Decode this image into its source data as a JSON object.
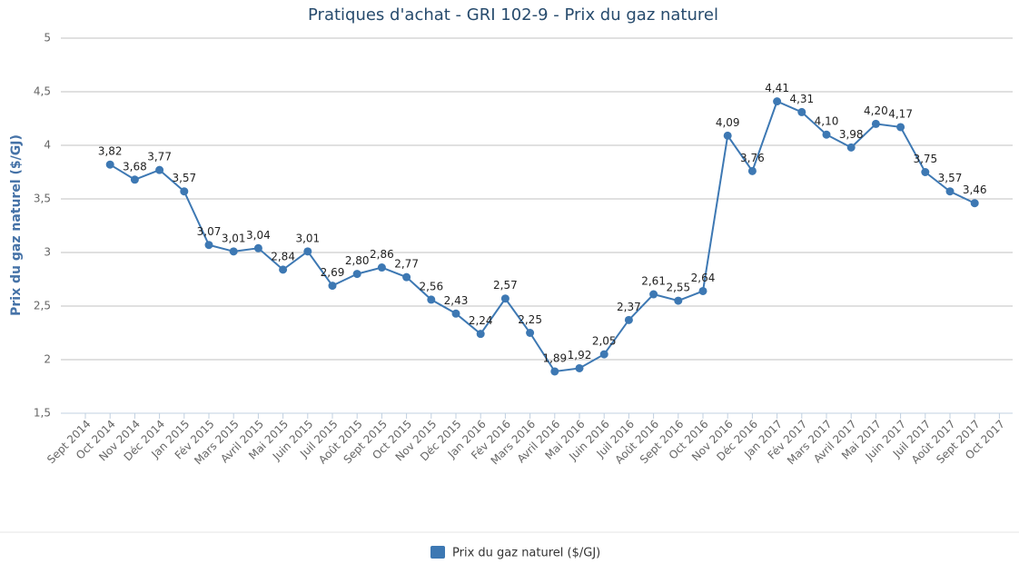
{
  "chart_data": {
    "type": "line",
    "title": "Pratiques d'achat - GRI 102-9 - Prix du gaz naturel",
    "y_label": "Prix du gaz naturel ($/GJ)",
    "categories": [
      "Sept 2014",
      "Oct 2014",
      "Nov 2014",
      "Déc 2014",
      "Jan 2015",
      "Fév 2015",
      "Mars 2015",
      "Avril 2015",
      "Mai 2015",
      "Juin 2015",
      "Juil 2015",
      "Août 2015",
      "Sept 2015",
      "Oct 2015",
      "Nov 2015",
      "Déc 2015",
      "Jan 2016",
      "Fév 2016",
      "Mars 2016",
      "Avril 2016",
      "Mai 2016",
      "Juin 2016",
      "Juil 2016",
      "Août 2016",
      "Sept 2016",
      "Oct 2016",
      "Nov 2016",
      "Déc 2016",
      "Jan 2017",
      "Fév 2017",
      "Mars 2017",
      "Avril 2017",
      "Mai 2017",
      "Juin 2017",
      "Juil 2017",
      "Août 2017",
      "Sept 2017",
      "Oct 2017"
    ],
    "series": [
      {
        "name": "Prix du gaz naturel ($/GJ)",
        "color": "#3d78b3",
        "values": [
          null,
          3.82,
          3.68,
          3.77,
          3.57,
          3.07,
          3.01,
          3.04,
          2.84,
          3.01,
          2.69,
          2.8,
          2.86,
          2.77,
          2.56,
          2.43,
          2.24,
          2.57,
          2.25,
          1.89,
          1.92,
          2.05,
          2.37,
          2.61,
          2.55,
          2.64,
          4.09,
          3.76,
          4.41,
          4.31,
          4.1,
          3.98,
          4.2,
          4.17,
          3.75,
          3.57,
          3.46,
          null
        ],
        "value_labels": [
          null,
          "3,82",
          "3,68",
          "3,77",
          "3,57",
          "3,07",
          "3,01",
          "3,04",
          "2,84",
          "3,01",
          "2,69",
          "2,80",
          "2,86",
          "2,77",
          "2,56",
          "2,43",
          "2,24",
          "2,57",
          "2,25",
          "1,89",
          "1,92",
          "2,05",
          "2,37",
          "2,61",
          "2,55",
          "2,64",
          "4,09",
          "3,76",
          "4,41",
          "4,31",
          "4,10",
          "3,98",
          "4,20",
          "4,17",
          "3,75",
          "3,57",
          "3,46",
          null
        ]
      }
    ],
    "ylim": [
      1.5,
      5
    ],
    "yticks": [
      {
        "value": 1.5,
        "label": "1,5"
      },
      2,
      {
        "value": 2.5,
        "label": "2,5"
      },
      3,
      {
        "value": 3.5,
        "label": "3,5"
      },
      4,
      {
        "value": 4.5,
        "label": "4,5"
      },
      5
    ],
    "grid": true,
    "legend": "bottom"
  }
}
